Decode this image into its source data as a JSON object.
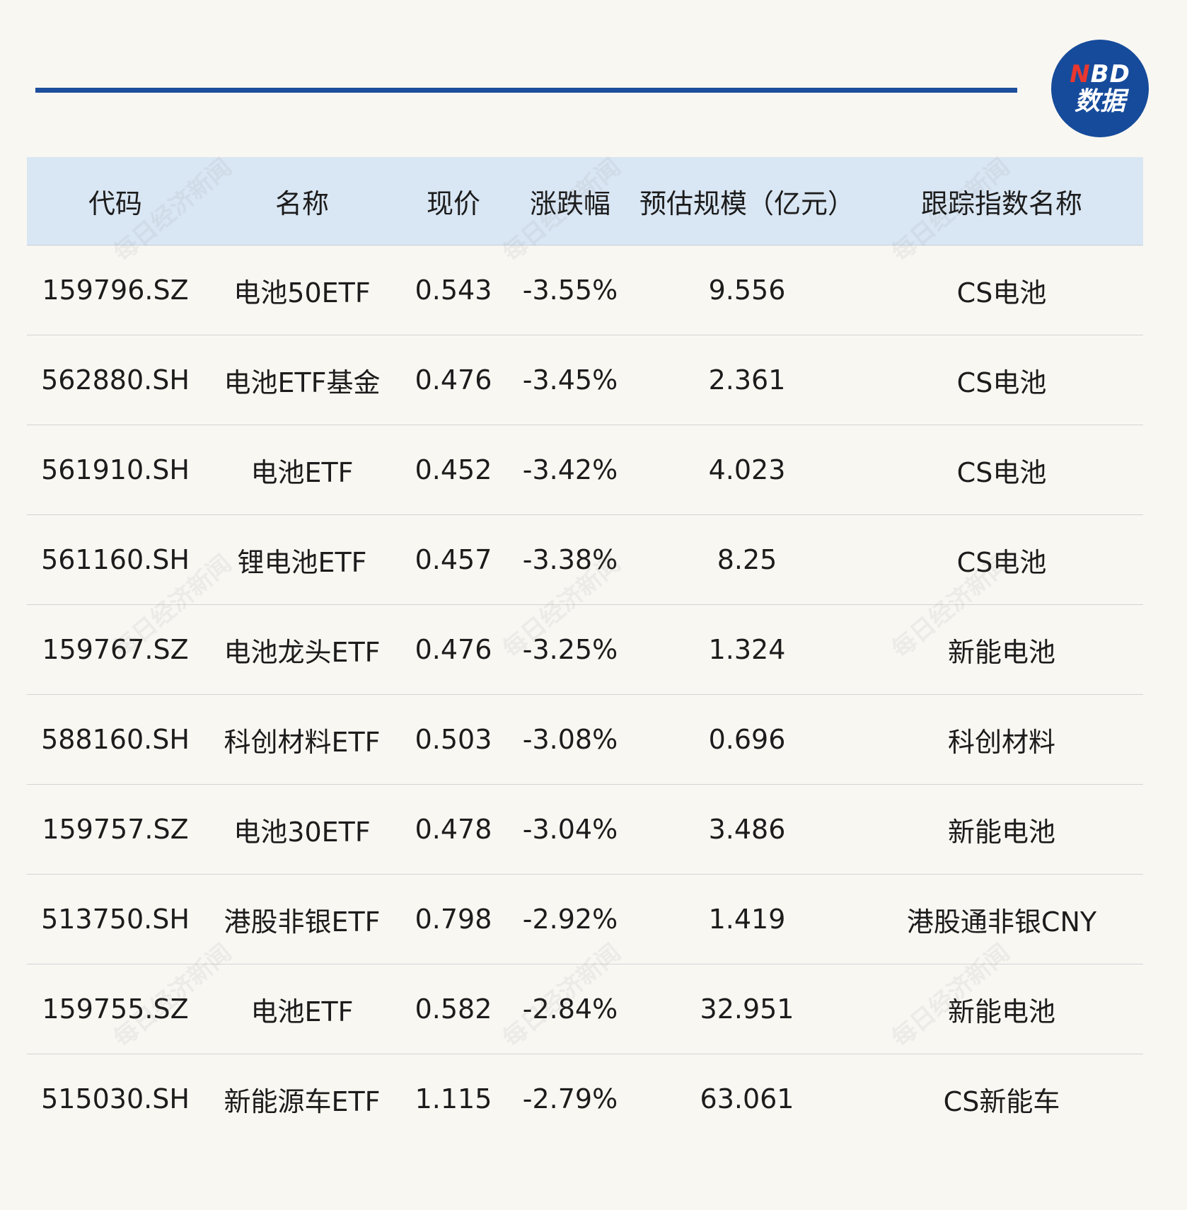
{
  "logo": {
    "top": "NBD",
    "bottom": "数据"
  },
  "watermark": "每日经济新闻",
  "table": {
    "headers": [
      "代码",
      "名称",
      "现价",
      "涨跌幅",
      "预估规模（亿元）",
      "跟踪指数名称"
    ],
    "rows": [
      {
        "code": "159796.SZ",
        "name": "电池50ETF",
        "price": "0.543",
        "change": "-3.55%",
        "scale": "9.556",
        "index": "CS电池"
      },
      {
        "code": "562880.SH",
        "name": "电池ETF基金",
        "price": "0.476",
        "change": "-3.45%",
        "scale": "2.361",
        "index": "CS电池"
      },
      {
        "code": "561910.SH",
        "name": "电池ETF",
        "price": "0.452",
        "change": "-3.42%",
        "scale": "4.023",
        "index": "CS电池"
      },
      {
        "code": "561160.SH",
        "name": "锂电池ETF",
        "price": "0.457",
        "change": "-3.38%",
        "scale": "8.25",
        "index": "CS电池"
      },
      {
        "code": "159767.SZ",
        "name": "电池龙头ETF",
        "price": "0.476",
        "change": "-3.25%",
        "scale": "1.324",
        "index": "新能电池"
      },
      {
        "code": "588160.SH",
        "name": "科创材料ETF",
        "price": "0.503",
        "change": "-3.08%",
        "scale": "0.696",
        "index": "科创材料"
      },
      {
        "code": "159757.SZ",
        "name": "电池30ETF",
        "price": "0.478",
        "change": "-3.04%",
        "scale": "3.486",
        "index": "新能电池"
      },
      {
        "code": "513750.SH",
        "name": "港股非银ETF",
        "price": "0.798",
        "change": "-2.92%",
        "scale": "1.419",
        "index": "港股通非银CNY"
      },
      {
        "code": "159755.SZ",
        "name": "电池ETF",
        "price": "0.582",
        "change": "-2.84%",
        "scale": "32.951",
        "index": "新能电池"
      },
      {
        "code": "515030.SH",
        "name": "新能源车ETF",
        "price": "1.115",
        "change": "-2.79%",
        "scale": "63.061",
        "index": "CS新能车"
      }
    ]
  }
}
